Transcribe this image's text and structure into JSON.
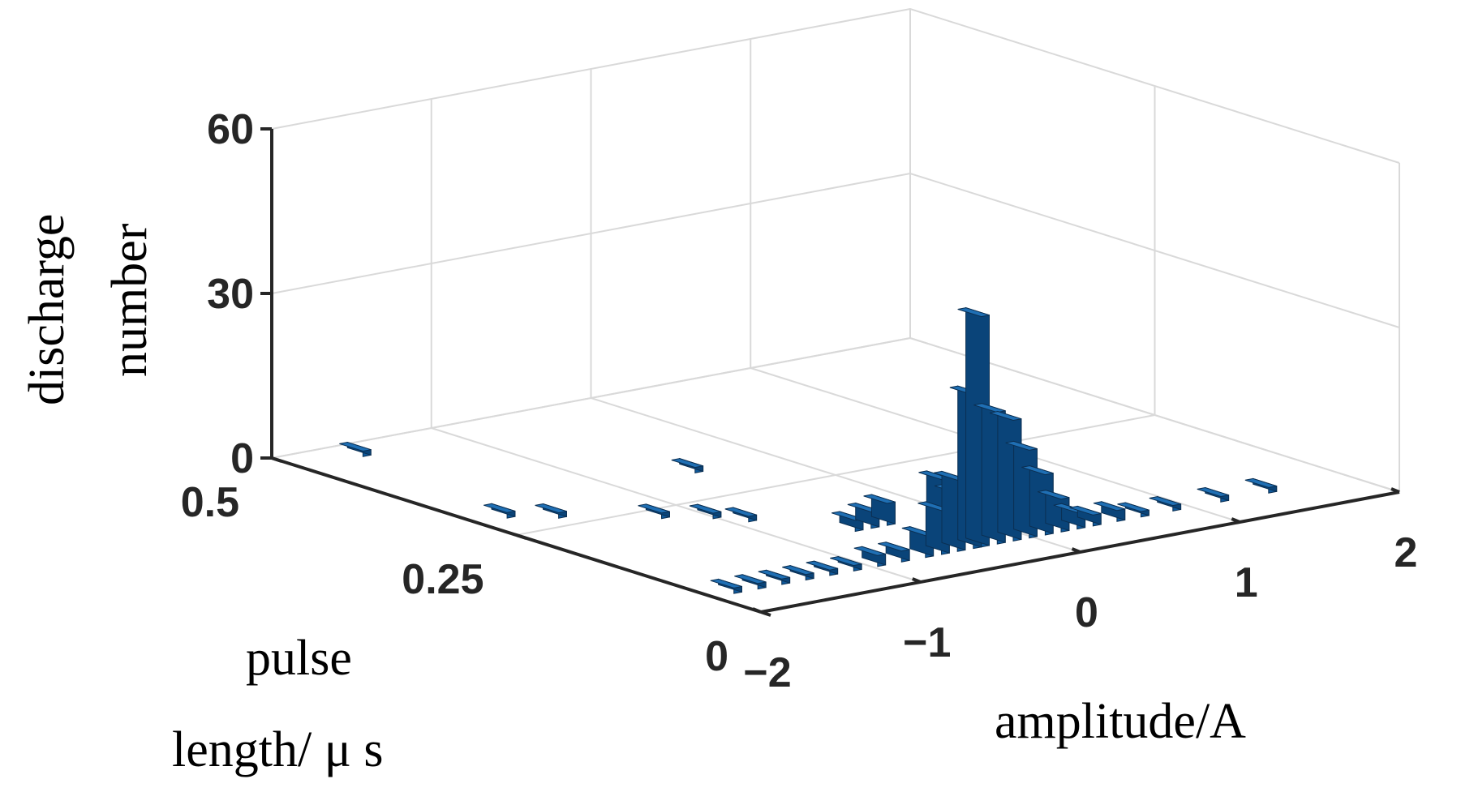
{
  "chart_data": {
    "type": "bar3d",
    "xlabel": "amplitude/A",
    "ylabel_lines": [
      "pulse",
      "length/ μ s"
    ],
    "zlabel_lines": [
      "discharge",
      "number"
    ],
    "x_ticks": [
      "−2",
      "−1",
      "0",
      "1",
      "2"
    ],
    "x_tick_values": [
      -2,
      -1,
      0,
      1,
      2
    ],
    "y_ticks": [
      "0",
      "0.25",
      "0.5"
    ],
    "y_tick_values": [
      0,
      0.25,
      0.5
    ],
    "z_ticks": [
      "0",
      "30",
      "60"
    ],
    "z_tick_values": [
      0,
      30,
      60
    ],
    "xlim": [
      -2,
      2
    ],
    "ylim": [
      0,
      0.5
    ],
    "zlim": [
      0,
      60
    ],
    "grid": true,
    "bar_color": "#0f5a9c",
    "bars": [
      {
        "x": -0.3,
        "y": 0.06,
        "z": 42
      },
      {
        "x": -0.35,
        "y": 0.06,
        "z": 28
      },
      {
        "x": -0.2,
        "y": 0.06,
        "z": 24
      },
      {
        "x": -0.1,
        "y": 0.06,
        "z": 22
      },
      {
        "x": 0.0,
        "y": 0.06,
        "z": 16
      },
      {
        "x": 0.1,
        "y": 0.06,
        "z": 11
      },
      {
        "x": 0.2,
        "y": 0.06,
        "z": 6
      },
      {
        "x": -0.45,
        "y": 0.06,
        "z": 13
      },
      {
        "x": -0.55,
        "y": 0.06,
        "z": 8
      },
      {
        "x": -0.65,
        "y": 0.06,
        "z": 4
      },
      {
        "x": -0.3,
        "y": 0.1,
        "z": 10
      },
      {
        "x": -0.2,
        "y": 0.1,
        "z": 7
      },
      {
        "x": -0.1,
        "y": 0.1,
        "z": 5
      },
      {
        "x": 0.3,
        "y": 0.06,
        "z": 3
      },
      {
        "x": 0.4,
        "y": 0.06,
        "z": 2
      },
      {
        "x": 0.55,
        "y": 0.06,
        "z": 2
      },
      {
        "x": 0.7,
        "y": 0.06,
        "z": 1
      },
      {
        "x": 0.9,
        "y": 0.06,
        "z": 1
      },
      {
        "x": 1.2,
        "y": 0.06,
        "z": 1
      },
      {
        "x": 1.5,
        "y": 0.06,
        "z": 1
      },
      {
        "x": -0.8,
        "y": 0.06,
        "z": 2
      },
      {
        "x": -0.95,
        "y": 0.06,
        "z": 2
      },
      {
        "x": -1.1,
        "y": 0.06,
        "z": 1
      },
      {
        "x": -1.25,
        "y": 0.06,
        "z": 1
      },
      {
        "x": -1.4,
        "y": 0.06,
        "z": 1
      },
      {
        "x": -1.55,
        "y": 0.06,
        "z": 1
      },
      {
        "x": -1.7,
        "y": 0.06,
        "z": 1
      },
      {
        "x": -1.85,
        "y": 0.06,
        "z": 1
      },
      {
        "x": -0.6,
        "y": 0.14,
        "z": 2
      },
      {
        "x": -0.5,
        "y": 0.14,
        "z": 3
      },
      {
        "x": -0.4,
        "y": 0.14,
        "z": 4
      },
      {
        "x": -0.9,
        "y": 0.2,
        "z": 1
      },
      {
        "x": -1.0,
        "y": 0.22,
        "z": 1
      },
      {
        "x": -1.2,
        "y": 0.24,
        "z": 1
      },
      {
        "x": -1.6,
        "y": 0.28,
        "z": 1
      },
      {
        "x": -1.8,
        "y": 0.3,
        "z": 1
      },
      {
        "x": -0.5,
        "y": 0.32,
        "z": 1
      },
      {
        "x": -1.6,
        "y": 0.48,
        "z": 1
      }
    ]
  }
}
